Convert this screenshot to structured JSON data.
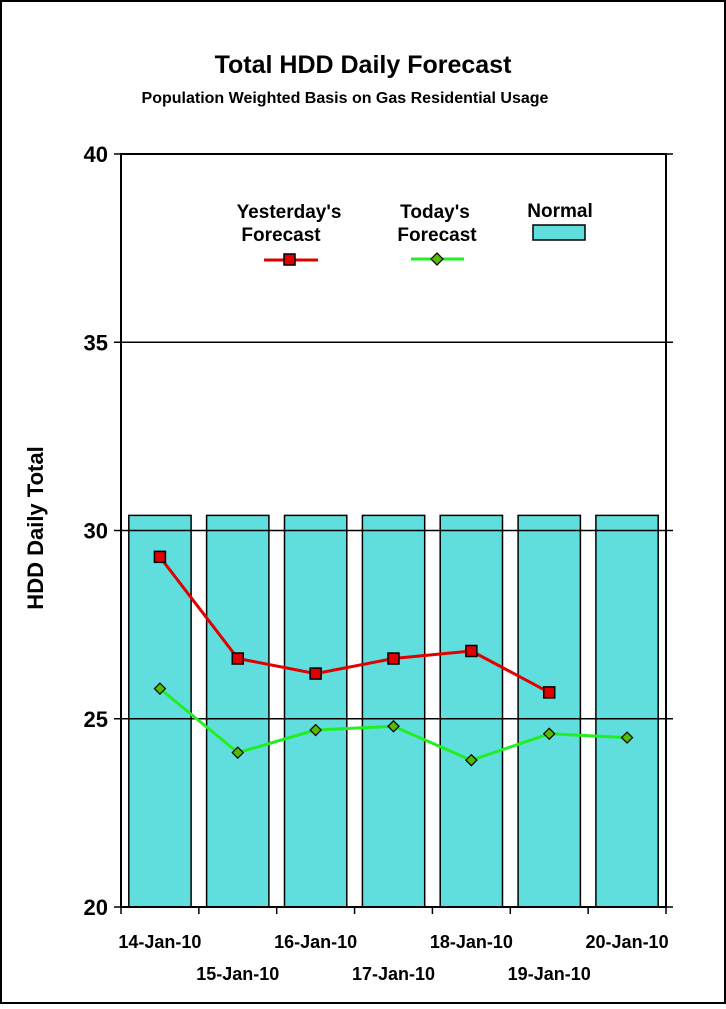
{
  "chart_data": {
    "type": "bar",
    "title": "Total HDD Daily Forecast",
    "subtitle": "Population Weighted Basis on Gas Residential Usage",
    "ylabel": "HDD Daily Total",
    "xlabel": "",
    "ylim": [
      20,
      40
    ],
    "yticks": [
      "20",
      "25",
      "30",
      "35",
      "40"
    ],
    "categories": [
      "14-Jan-10",
      "15-Jan-10",
      "16-Jan-10",
      "17-Jan-10",
      "18-Jan-10",
      "19-Jan-10",
      "20-Jan-10"
    ],
    "grid": true,
    "legend_position": "top-center",
    "series": [
      {
        "name": "Normal",
        "kind": "bar",
        "color": "#60dede",
        "values": [
          30.4,
          30.4,
          30.4,
          30.4,
          30.4,
          30.4,
          30.4
        ]
      },
      {
        "name": "Yesterday's Forecast",
        "legend_lines": [
          "Yesterday's",
          "Forecast"
        ],
        "kind": "line",
        "marker": "square",
        "color": "#e00000",
        "marker_color": "#e00000",
        "values": [
          29.3,
          26.6,
          26.2,
          26.6,
          26.8,
          25.7,
          null
        ]
      },
      {
        "name": "Today's Forecast",
        "legend_lines": [
          "Today's",
          "Forecast"
        ],
        "kind": "line",
        "marker": "diamond",
        "color": "#22ee22",
        "marker_color": "#55bb00",
        "values": [
          25.8,
          24.1,
          24.7,
          24.8,
          23.9,
          24.6,
          24.5
        ]
      }
    ]
  }
}
